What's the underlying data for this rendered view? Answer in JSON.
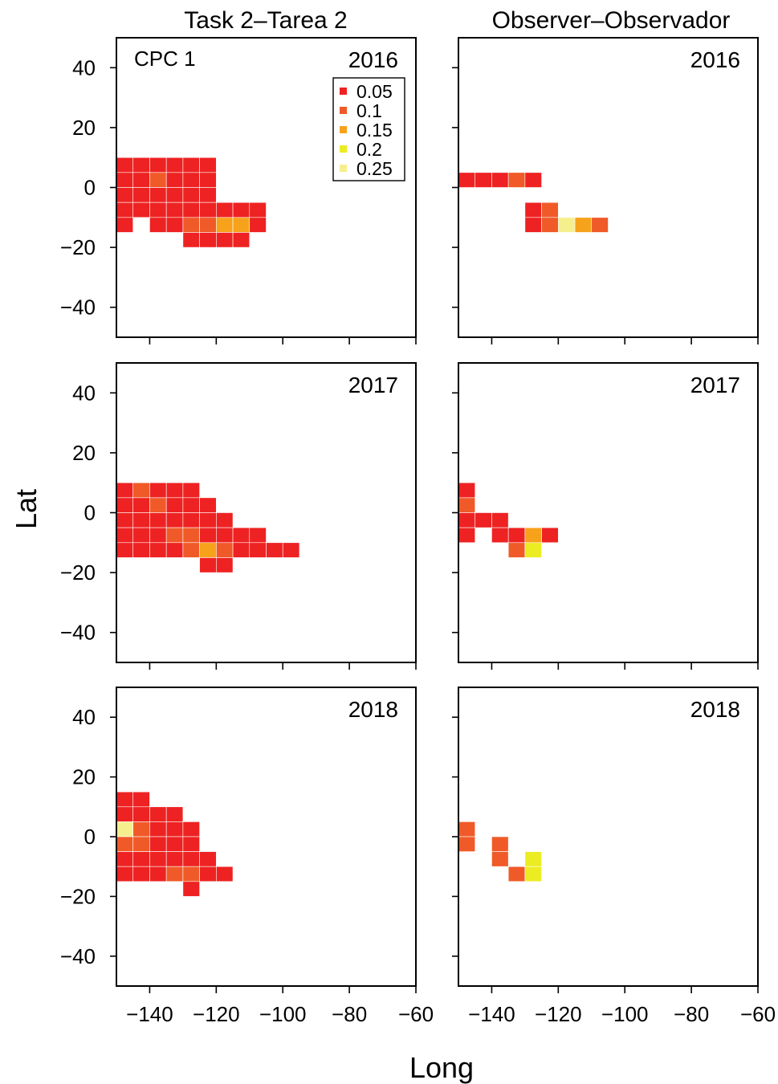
{
  "chart_data": {
    "type": "heatmap",
    "figure_label": "CPC 1",
    "column_titles": [
      "Task 2–Tarea 2",
      "Observer–Observador"
    ],
    "xlabel": "Long",
    "ylabel": "Lat",
    "xlim": [
      -150,
      -60
    ],
    "ylim": [
      -50,
      50
    ],
    "x_ticks": [
      -140,
      -120,
      -100,
      -80,
      -60
    ],
    "y_ticks": [
      40,
      20,
      0,
      -20,
      -40
    ],
    "x_tick_labels": [
      "−140",
      "−120",
      "−100",
      "−80",
      "−60"
    ],
    "y_tick_labels": [
      "40",
      "20",
      "0",
      "−20",
      "−40"
    ],
    "cell_size_deg": 5,
    "grid": false,
    "legend": {
      "placement": "top-right of first panel",
      "entries": [
        {
          "label": "0.05",
          "value": 0.05,
          "color": "#ee2222"
        },
        {
          "label": "0.1",
          "value": 0.1,
          "color": "#f05a28"
        },
        {
          "label": "0.15",
          "value": 0.15,
          "color": "#f7a21b"
        },
        {
          "label": "0.2",
          "value": 0.2,
          "color": "#ecec22"
        },
        {
          "label": "0.25",
          "value": 0.25,
          "color": "#f5ef8e"
        }
      ]
    },
    "panels": [
      {
        "column": 0,
        "row": 0,
        "year": "2016",
        "cells": [
          {
            "lon": -147.5,
            "lat": 7.5,
            "value": 0.05
          },
          {
            "lon": -142.5,
            "lat": 7.5,
            "value": 0.05
          },
          {
            "lon": -137.5,
            "lat": 7.5,
            "value": 0.05
          },
          {
            "lon": -132.5,
            "lat": 7.5,
            "value": 0.05
          },
          {
            "lon": -127.5,
            "lat": 7.5,
            "value": 0.05
          },
          {
            "lon": -122.5,
            "lat": 7.5,
            "value": 0.05
          },
          {
            "lon": -147.5,
            "lat": 2.5,
            "value": 0.05
          },
          {
            "lon": -142.5,
            "lat": 2.5,
            "value": 0.05
          },
          {
            "lon": -137.5,
            "lat": 2.5,
            "value": 0.1
          },
          {
            "lon": -132.5,
            "lat": 2.5,
            "value": 0.05
          },
          {
            "lon": -127.5,
            "lat": 2.5,
            "value": 0.05
          },
          {
            "lon": -122.5,
            "lat": 2.5,
            "value": 0.05
          },
          {
            "lon": -147.5,
            "lat": -2.5,
            "value": 0.05
          },
          {
            "lon": -142.5,
            "lat": -2.5,
            "value": 0.05
          },
          {
            "lon": -137.5,
            "lat": -2.5,
            "value": 0.05
          },
          {
            "lon": -132.5,
            "lat": -2.5,
            "value": 0.05
          },
          {
            "lon": -127.5,
            "lat": -2.5,
            "value": 0.05
          },
          {
            "lon": -122.5,
            "lat": -2.5,
            "value": 0.05
          },
          {
            "lon": -147.5,
            "lat": -7.5,
            "value": 0.05
          },
          {
            "lon": -142.5,
            "lat": -7.5,
            "value": 0.05
          },
          {
            "lon": -137.5,
            "lat": -7.5,
            "value": 0.05
          },
          {
            "lon": -132.5,
            "lat": -7.5,
            "value": 0.05
          },
          {
            "lon": -127.5,
            "lat": -7.5,
            "value": 0.05
          },
          {
            "lon": -122.5,
            "lat": -7.5,
            "value": 0.05
          },
          {
            "lon": -117.5,
            "lat": -7.5,
            "value": 0.05
          },
          {
            "lon": -112.5,
            "lat": -7.5,
            "value": 0.05
          },
          {
            "lon": -107.5,
            "lat": -7.5,
            "value": 0.05
          },
          {
            "lon": -147.5,
            "lat": -12.5,
            "value": 0.05
          },
          {
            "lon": -137.5,
            "lat": -12.5,
            "value": 0.05
          },
          {
            "lon": -132.5,
            "lat": -12.5,
            "value": 0.05
          },
          {
            "lon": -127.5,
            "lat": -12.5,
            "value": 0.1
          },
          {
            "lon": -122.5,
            "lat": -12.5,
            "value": 0.1
          },
          {
            "lon": -117.5,
            "lat": -12.5,
            "value": 0.15
          },
          {
            "lon": -112.5,
            "lat": -12.5,
            "value": 0.15
          },
          {
            "lon": -107.5,
            "lat": -12.5,
            "value": 0.05
          },
          {
            "lon": -127.5,
            "lat": -17.5,
            "value": 0.05
          },
          {
            "lon": -122.5,
            "lat": -17.5,
            "value": 0.05
          },
          {
            "lon": -117.5,
            "lat": -17.5,
            "value": 0.05
          },
          {
            "lon": -112.5,
            "lat": -17.5,
            "value": 0.05
          }
        ]
      },
      {
        "column": 1,
        "row": 0,
        "year": "2016",
        "cells": [
          {
            "lon": -147.5,
            "lat": 2.5,
            "value": 0.05
          },
          {
            "lon": -142.5,
            "lat": 2.5,
            "value": 0.05
          },
          {
            "lon": -137.5,
            "lat": 2.5,
            "value": 0.05
          },
          {
            "lon": -132.5,
            "lat": 2.5,
            "value": 0.1
          },
          {
            "lon": -127.5,
            "lat": 2.5,
            "value": 0.05
          },
          {
            "lon": -127.5,
            "lat": -7.5,
            "value": 0.05
          },
          {
            "lon": -122.5,
            "lat": -7.5,
            "value": 0.1
          },
          {
            "lon": -127.5,
            "lat": -12.5,
            "value": 0.05
          },
          {
            "lon": -122.5,
            "lat": -12.5,
            "value": 0.1
          },
          {
            "lon": -117.5,
            "lat": -12.5,
            "value": 0.25
          },
          {
            "lon": -112.5,
            "lat": -12.5,
            "value": 0.15
          },
          {
            "lon": -107.5,
            "lat": -12.5,
            "value": 0.1
          }
        ]
      },
      {
        "column": 0,
        "row": 1,
        "year": "2017",
        "cells": [
          {
            "lon": -147.5,
            "lat": 7.5,
            "value": 0.05
          },
          {
            "lon": -142.5,
            "lat": 7.5,
            "value": 0.1
          },
          {
            "lon": -137.5,
            "lat": 7.5,
            "value": 0.05
          },
          {
            "lon": -132.5,
            "lat": 7.5,
            "value": 0.05
          },
          {
            "lon": -127.5,
            "lat": 7.5,
            "value": 0.05
          },
          {
            "lon": -147.5,
            "lat": 2.5,
            "value": 0.05
          },
          {
            "lon": -142.5,
            "lat": 2.5,
            "value": 0.05
          },
          {
            "lon": -137.5,
            "lat": 2.5,
            "value": 0.1
          },
          {
            "lon": -132.5,
            "lat": 2.5,
            "value": 0.05
          },
          {
            "lon": -127.5,
            "lat": 2.5,
            "value": 0.05
          },
          {
            "lon": -122.5,
            "lat": 2.5,
            "value": 0.05
          },
          {
            "lon": -147.5,
            "lat": -2.5,
            "value": 0.05
          },
          {
            "lon": -142.5,
            "lat": -2.5,
            "value": 0.05
          },
          {
            "lon": -137.5,
            "lat": -2.5,
            "value": 0.05
          },
          {
            "lon": -132.5,
            "lat": -2.5,
            "value": 0.05
          },
          {
            "lon": -127.5,
            "lat": -2.5,
            "value": 0.05
          },
          {
            "lon": -122.5,
            "lat": -2.5,
            "value": 0.05
          },
          {
            "lon": -117.5,
            "lat": -2.5,
            "value": 0.05
          },
          {
            "lon": -147.5,
            "lat": -7.5,
            "value": 0.05
          },
          {
            "lon": -142.5,
            "lat": -7.5,
            "value": 0.05
          },
          {
            "lon": -137.5,
            "lat": -7.5,
            "value": 0.05
          },
          {
            "lon": -132.5,
            "lat": -7.5,
            "value": 0.1
          },
          {
            "lon": -127.5,
            "lat": -7.5,
            "value": 0.1
          },
          {
            "lon": -122.5,
            "lat": -7.5,
            "value": 0.05
          },
          {
            "lon": -117.5,
            "lat": -7.5,
            "value": 0.05
          },
          {
            "lon": -112.5,
            "lat": -7.5,
            "value": 0.05
          },
          {
            "lon": -107.5,
            "lat": -7.5,
            "value": 0.05
          },
          {
            "lon": -147.5,
            "lat": -12.5,
            "value": 0.05
          },
          {
            "lon": -142.5,
            "lat": -12.5,
            "value": 0.05
          },
          {
            "lon": -137.5,
            "lat": -12.5,
            "value": 0.05
          },
          {
            "lon": -132.5,
            "lat": -12.5,
            "value": 0.05
          },
          {
            "lon": -127.5,
            "lat": -12.5,
            "value": 0.1
          },
          {
            "lon": -122.5,
            "lat": -12.5,
            "value": 0.15
          },
          {
            "lon": -117.5,
            "lat": -12.5,
            "value": 0.1
          },
          {
            "lon": -112.5,
            "lat": -12.5,
            "value": 0.05
          },
          {
            "lon": -107.5,
            "lat": -12.5,
            "value": 0.05
          },
          {
            "lon": -102.5,
            "lat": -12.5,
            "value": 0.05
          },
          {
            "lon": -97.5,
            "lat": -12.5,
            "value": 0.05
          },
          {
            "lon": -122.5,
            "lat": -17.5,
            "value": 0.05
          },
          {
            "lon": -117.5,
            "lat": -17.5,
            "value": 0.05
          }
        ]
      },
      {
        "column": 1,
        "row": 1,
        "year": "2017",
        "cells": [
          {
            "lon": -147.5,
            "lat": 7.5,
            "value": 0.05
          },
          {
            "lon": -147.5,
            "lat": 2.5,
            "value": 0.1
          },
          {
            "lon": -147.5,
            "lat": -2.5,
            "value": 0.05
          },
          {
            "lon": -142.5,
            "lat": -2.5,
            "value": 0.05
          },
          {
            "lon": -137.5,
            "lat": -2.5,
            "value": 0.05
          },
          {
            "lon": -147.5,
            "lat": -7.5,
            "value": 0.05
          },
          {
            "lon": -137.5,
            "lat": -7.5,
            "value": 0.05
          },
          {
            "lon": -132.5,
            "lat": -7.5,
            "value": 0.05
          },
          {
            "lon": -127.5,
            "lat": -7.5,
            "value": 0.15
          },
          {
            "lon": -122.5,
            "lat": -7.5,
            "value": 0.05
          },
          {
            "lon": -132.5,
            "lat": -12.5,
            "value": 0.1
          },
          {
            "lon": -127.5,
            "lat": -12.5,
            "value": 0.2
          }
        ]
      },
      {
        "column": 0,
        "row": 2,
        "year": "2018",
        "cells": [
          {
            "lon": -147.5,
            "lat": 12.5,
            "value": 0.05
          },
          {
            "lon": -142.5,
            "lat": 12.5,
            "value": 0.05
          },
          {
            "lon": -147.5,
            "lat": 7.5,
            "value": 0.05
          },
          {
            "lon": -142.5,
            "lat": 7.5,
            "value": 0.05
          },
          {
            "lon": -137.5,
            "lat": 7.5,
            "value": 0.05
          },
          {
            "lon": -132.5,
            "lat": 7.5,
            "value": 0.05
          },
          {
            "lon": -147.5,
            "lat": 2.5,
            "value": 0.25
          },
          {
            "lon": -142.5,
            "lat": 2.5,
            "value": 0.1
          },
          {
            "lon": -137.5,
            "lat": 2.5,
            "value": 0.05
          },
          {
            "lon": -132.5,
            "lat": 2.5,
            "value": 0.05
          },
          {
            "lon": -127.5,
            "lat": 2.5,
            "value": 0.05
          },
          {
            "lon": -147.5,
            "lat": -2.5,
            "value": 0.1
          },
          {
            "lon": -142.5,
            "lat": -2.5,
            "value": 0.1
          },
          {
            "lon": -137.5,
            "lat": -2.5,
            "value": 0.05
          },
          {
            "lon": -132.5,
            "lat": -2.5,
            "value": 0.05
          },
          {
            "lon": -127.5,
            "lat": -2.5,
            "value": 0.05
          },
          {
            "lon": -147.5,
            "lat": -7.5,
            "value": 0.05
          },
          {
            "lon": -142.5,
            "lat": -7.5,
            "value": 0.05
          },
          {
            "lon": -137.5,
            "lat": -7.5,
            "value": 0.05
          },
          {
            "lon": -132.5,
            "lat": -7.5,
            "value": 0.05
          },
          {
            "lon": -127.5,
            "lat": -7.5,
            "value": 0.05
          },
          {
            "lon": -122.5,
            "lat": -7.5,
            "value": 0.05
          },
          {
            "lon": -147.5,
            "lat": -12.5,
            "value": 0.05
          },
          {
            "lon": -142.5,
            "lat": -12.5,
            "value": 0.05
          },
          {
            "lon": -137.5,
            "lat": -12.5,
            "value": 0.05
          },
          {
            "lon": -132.5,
            "lat": -12.5,
            "value": 0.1
          },
          {
            "lon": -127.5,
            "lat": -12.5,
            "value": 0.1
          },
          {
            "lon": -122.5,
            "lat": -12.5,
            "value": 0.05
          },
          {
            "lon": -117.5,
            "lat": -12.5,
            "value": 0.05
          },
          {
            "lon": -127.5,
            "lat": -17.5,
            "value": 0.05
          }
        ]
      },
      {
        "column": 1,
        "row": 2,
        "year": "2018",
        "cells": [
          {
            "lon": -147.5,
            "lat": 2.5,
            "value": 0.1
          },
          {
            "lon": -147.5,
            "lat": -2.5,
            "value": 0.1
          },
          {
            "lon": -137.5,
            "lat": -2.5,
            "value": 0.1
          },
          {
            "lon": -137.5,
            "lat": -7.5,
            "value": 0.1
          },
          {
            "lon": -127.5,
            "lat": -7.5,
            "value": 0.2
          },
          {
            "lon": -132.5,
            "lat": -12.5,
            "value": 0.1
          },
          {
            "lon": -127.5,
            "lat": -12.5,
            "value": 0.2
          }
        ]
      }
    ]
  }
}
